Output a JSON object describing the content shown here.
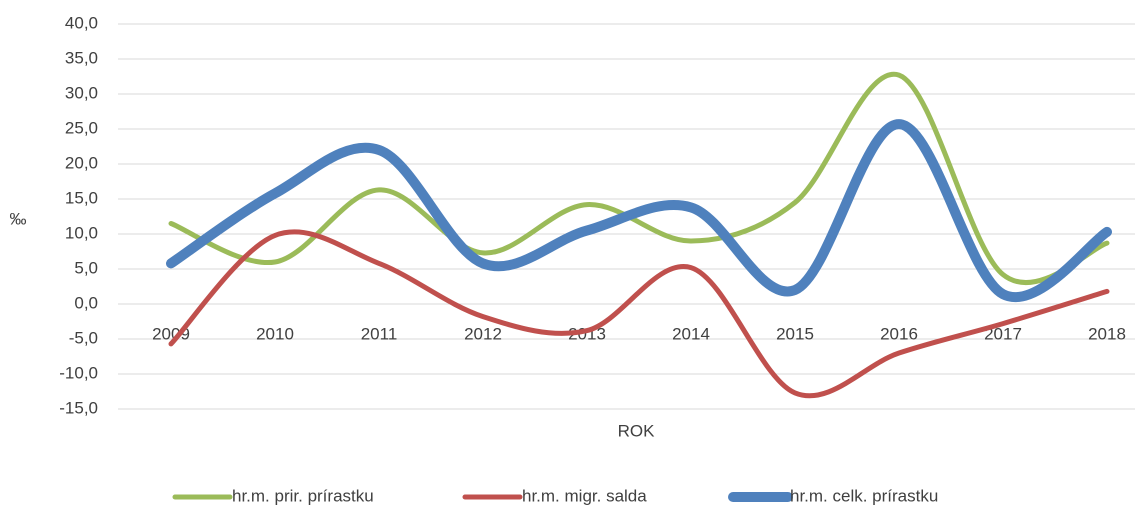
{
  "chart_data": {
    "type": "line",
    "categories": [
      "2009",
      "2010",
      "2011",
      "2012",
      "2013",
      "2014",
      "2015",
      "2016",
      "2017",
      "2018"
    ],
    "series": [
      {
        "name": "hr.m. prir. prírastku",
        "color": "#9bbb59",
        "values": [
          11.5,
          6.0,
          16.3,
          7.3,
          14.2,
          9.0,
          14.5,
          32.7,
          4.2,
          8.7
        ]
      },
      {
        "name": "hr.m. migr. salda",
        "color": "#c0504d",
        "values": [
          -5.7,
          9.8,
          5.8,
          -1.8,
          -3.8,
          5.2,
          -12.7,
          -7.0,
          -2.8,
          1.8
        ]
      },
      {
        "name": "hr.m. celk. prírastku",
        "color": "#4f81bd",
        "values": [
          5.8,
          15.8,
          22.0,
          5.8,
          10.5,
          13.8,
          2.0,
          25.7,
          1.4,
          10.3
        ]
      }
    ],
    "ylabel": "‰",
    "xlabel": "ROK",
    "ylim": [
      -15,
      40
    ],
    "yticks": [
      {
        "value": -15,
        "label": "-15,0"
      },
      {
        "value": -10,
        "label": "-10,0"
      },
      {
        "value": -5,
        "label": "-5,0"
      },
      {
        "value": 0,
        "label": "0,0"
      },
      {
        "value": 5,
        "label": "5,0"
      },
      {
        "value": 10,
        "label": "10,0"
      },
      {
        "value": 15,
        "label": "15,0"
      },
      {
        "value": 20,
        "label": "20,0"
      },
      {
        "value": 25,
        "label": "25,0"
      },
      {
        "value": 30,
        "label": "30,0"
      },
      {
        "value": 35,
        "label": "35,0"
      },
      {
        "value": 40,
        "label": "40,0"
      }
    ],
    "grid": true,
    "smooth": true,
    "legend": "bottom"
  }
}
